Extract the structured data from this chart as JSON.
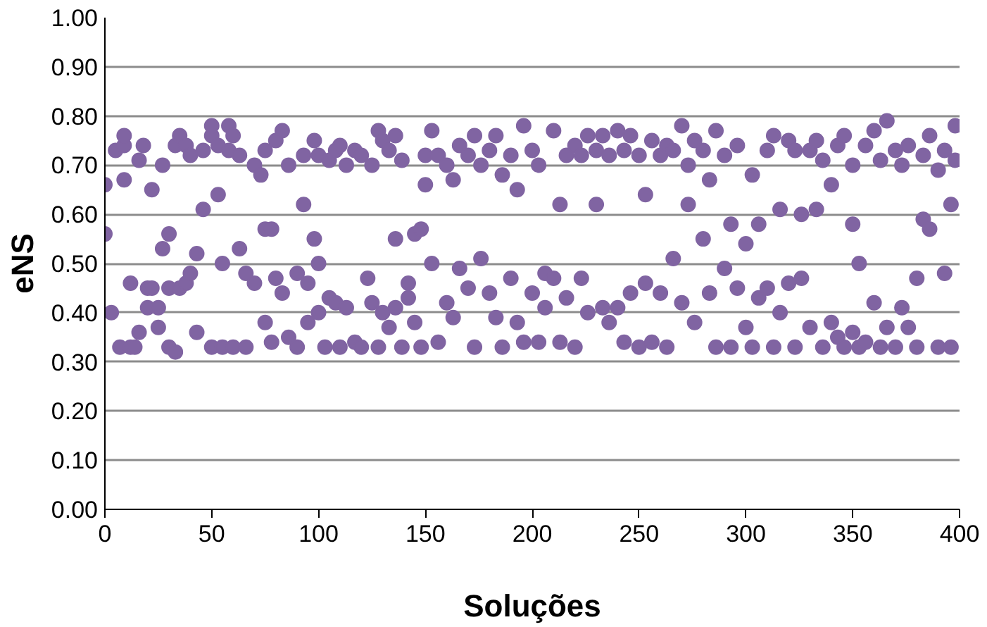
{
  "chart_data": {
    "type": "scatter",
    "xlabel": "Soluções",
    "ylabel": "eNS",
    "xlim": [
      0,
      400
    ],
    "xticks": [
      0,
      50,
      100,
      150,
      200,
      250,
      300,
      350,
      400
    ],
    "ylim": [
      0,
      1
    ],
    "yticks": [
      {
        "value": 0,
        "label": "0.00"
      },
      {
        "value": 0.1,
        "label": "0.10"
      },
      {
        "value": 0.2,
        "label": "0.20"
      },
      {
        "value": 0.3,
        "label": "0.30"
      },
      {
        "value": 0.4,
        "label": "0.40"
      },
      {
        "value": 0.5,
        "label": "0.50"
      },
      {
        "value": 0.6,
        "label": "0.60"
      },
      {
        "value": 0.7,
        "label": "0.70"
      },
      {
        "value": 0.8,
        "label": "0.80"
      },
      {
        "value": 0.9,
        "label": "0.90"
      },
      {
        "value": 1,
        "label": "1.00"
      }
    ],
    "grid": "y",
    "marker": "circle",
    "series": [
      {
        "color": "#8064a2",
        "x": [
          0,
          0,
          3,
          5,
          7,
          9,
          9,
          9,
          12,
          12,
          14,
          16,
          16,
          18,
          20,
          20,
          22,
          22,
          25,
          25,
          27,
          27,
          30,
          30,
          30,
          33,
          33,
          35,
          35,
          38,
          38,
          40,
          40,
          43,
          43,
          46,
          46,
          50,
          50,
          50,
          53,
          53,
          55,
          55,
          58,
          58,
          60,
          60,
          63,
          63,
          66,
          66,
          70,
          70,
          73,
          75,
          75,
          75,
          78,
          78,
          80,
          80,
          83,
          83,
          86,
          86,
          90,
          90,
          93,
          93,
          95,
          95,
          98,
          98,
          100,
          100,
          100,
          103,
          105,
          105,
          108,
          108,
          110,
          110,
          113,
          113,
          117,
          117,
          120,
          120,
          123,
          125,
          125,
          128,
          128,
          130,
          130,
          133,
          133,
          136,
          136,
          136,
          139,
          139,
          142,
          142,
          145,
          145,
          148,
          148,
          150,
          150,
          153,
          153,
          156,
          156,
          160,
          160,
          163,
          163,
          166,
          166,
          170,
          170,
          173,
          173,
          176,
          176,
          180,
          180,
          183,
          183,
          186,
          186,
          190,
          190,
          193,
          193,
          196,
          196,
          200,
          200,
          203,
          203,
          206,
          206,
          210,
          210,
          213,
          213,
          216,
          216,
          220,
          220,
          223,
          223,
          226,
          226,
          230,
          230,
          233,
          233,
          236,
          236,
          240,
          240,
          243,
          243,
          246,
          246,
          250,
          250,
          253,
          253,
          256,
          256,
          260,
          260,
          263,
          263,
          266,
          266,
          270,
          270,
          273,
          273,
          276,
          276,
          280,
          280,
          283,
          283,
          286,
          286,
          290,
          290,
          293,
          293,
          296,
          296,
          300,
          300,
          303,
          303,
          306,
          306,
          310,
          310,
          313,
          313,
          316,
          316,
          320,
          320,
          323,
          323,
          326,
          326,
          330,
          330,
          333,
          333,
          336,
          336,
          340,
          340,
          343,
          343,
          346,
          346,
          350,
          350,
          350,
          353,
          353,
          356,
          356,
          360,
          360,
          363,
          363,
          366,
          366,
          370,
          370,
          373,
          373,
          376,
          376,
          380,
          380,
          383,
          383,
          386,
          386,
          390,
          390,
          393,
          393,
          396,
          396,
          398,
          398
        ],
        "values": [
          0.56,
          0.66,
          0.4,
          0.73,
          0.33,
          0.74,
          0.76,
          0.67,
          0.46,
          0.33,
          0.33,
          0.71,
          0.36,
          0.74,
          0.41,
          0.45,
          0.65,
          0.45,
          0.41,
          0.37,
          0.7,
          0.53,
          0.56,
          0.45,
          0.33,
          0.74,
          0.32,
          0.45,
          0.76,
          0.74,
          0.46,
          0.72,
          0.48,
          0.52,
          0.36,
          0.61,
          0.73,
          0.33,
          0.76,
          0.78,
          0.64,
          0.74,
          0.33,
          0.5,
          0.78,
          0.73,
          0.33,
          0.76,
          0.53,
          0.72,
          0.48,
          0.33,
          0.7,
          0.46,
          0.68,
          0.38,
          0.57,
          0.73,
          0.57,
          0.34,
          0.47,
          0.75,
          0.77,
          0.44,
          0.7,
          0.35,
          0.33,
          0.48,
          0.62,
          0.72,
          0.46,
          0.38,
          0.55,
          0.75,
          0.72,
          0.5,
          0.4,
          0.33,
          0.71,
          0.43,
          0.73,
          0.42,
          0.74,
          0.33,
          0.7,
          0.41,
          0.73,
          0.34,
          0.72,
          0.33,
          0.47,
          0.7,
          0.42,
          0.77,
          0.33,
          0.75,
          0.4,
          0.73,
          0.37,
          0.55,
          0.76,
          0.41,
          0.71,
          0.33,
          0.46,
          0.43,
          0.56,
          0.38,
          0.57,
          0.33,
          0.66,
          0.72,
          0.77,
          0.5,
          0.72,
          0.34,
          0.7,
          0.42,
          0.67,
          0.39,
          0.74,
          0.49,
          0.72,
          0.45,
          0.76,
          0.33,
          0.7,
          0.51,
          0.73,
          0.44,
          0.76,
          0.39,
          0.68,
          0.33,
          0.72,
          0.47,
          0.65,
          0.38,
          0.78,
          0.34,
          0.73,
          0.44,
          0.34,
          0.7,
          0.48,
          0.41,
          0.77,
          0.47,
          0.62,
          0.34,
          0.72,
          0.43,
          0.74,
          0.33,
          0.47,
          0.72,
          0.4,
          0.76,
          0.62,
          0.73,
          0.76,
          0.41,
          0.38,
          0.72,
          0.41,
          0.77,
          0.34,
          0.73,
          0.44,
          0.76,
          0.33,
          0.72,
          0.46,
          0.64,
          0.34,
          0.75,
          0.72,
          0.44,
          0.33,
          0.74,
          0.51,
          0.73,
          0.78,
          0.42,
          0.62,
          0.7,
          0.38,
          0.75,
          0.55,
          0.73,
          0.67,
          0.44,
          0.33,
          0.77,
          0.72,
          0.49,
          0.58,
          0.33,
          0.74,
          0.45,
          0.54,
          0.37,
          0.68,
          0.33,
          0.43,
          0.58,
          0.73,
          0.45,
          0.33,
          0.76,
          0.4,
          0.61,
          0.46,
          0.75,
          0.33,
          0.73,
          0.47,
          0.6,
          0.73,
          0.37,
          0.61,
          0.75,
          0.33,
          0.71,
          0.66,
          0.38,
          0.74,
          0.35,
          0.33,
          0.76,
          0.7,
          0.36,
          0.58,
          0.33,
          0.5,
          0.74,
          0.34,
          0.77,
          0.42,
          0.33,
          0.71,
          0.79,
          0.37,
          0.73,
          0.33,
          0.41,
          0.7,
          0.74,
          0.37,
          0.33,
          0.47,
          0.72,
          0.59,
          0.57,
          0.76,
          0.33,
          0.69,
          0.73,
          0.48,
          0.62,
          0.33,
          0.78,
          0.71
        ]
      }
    ]
  }
}
